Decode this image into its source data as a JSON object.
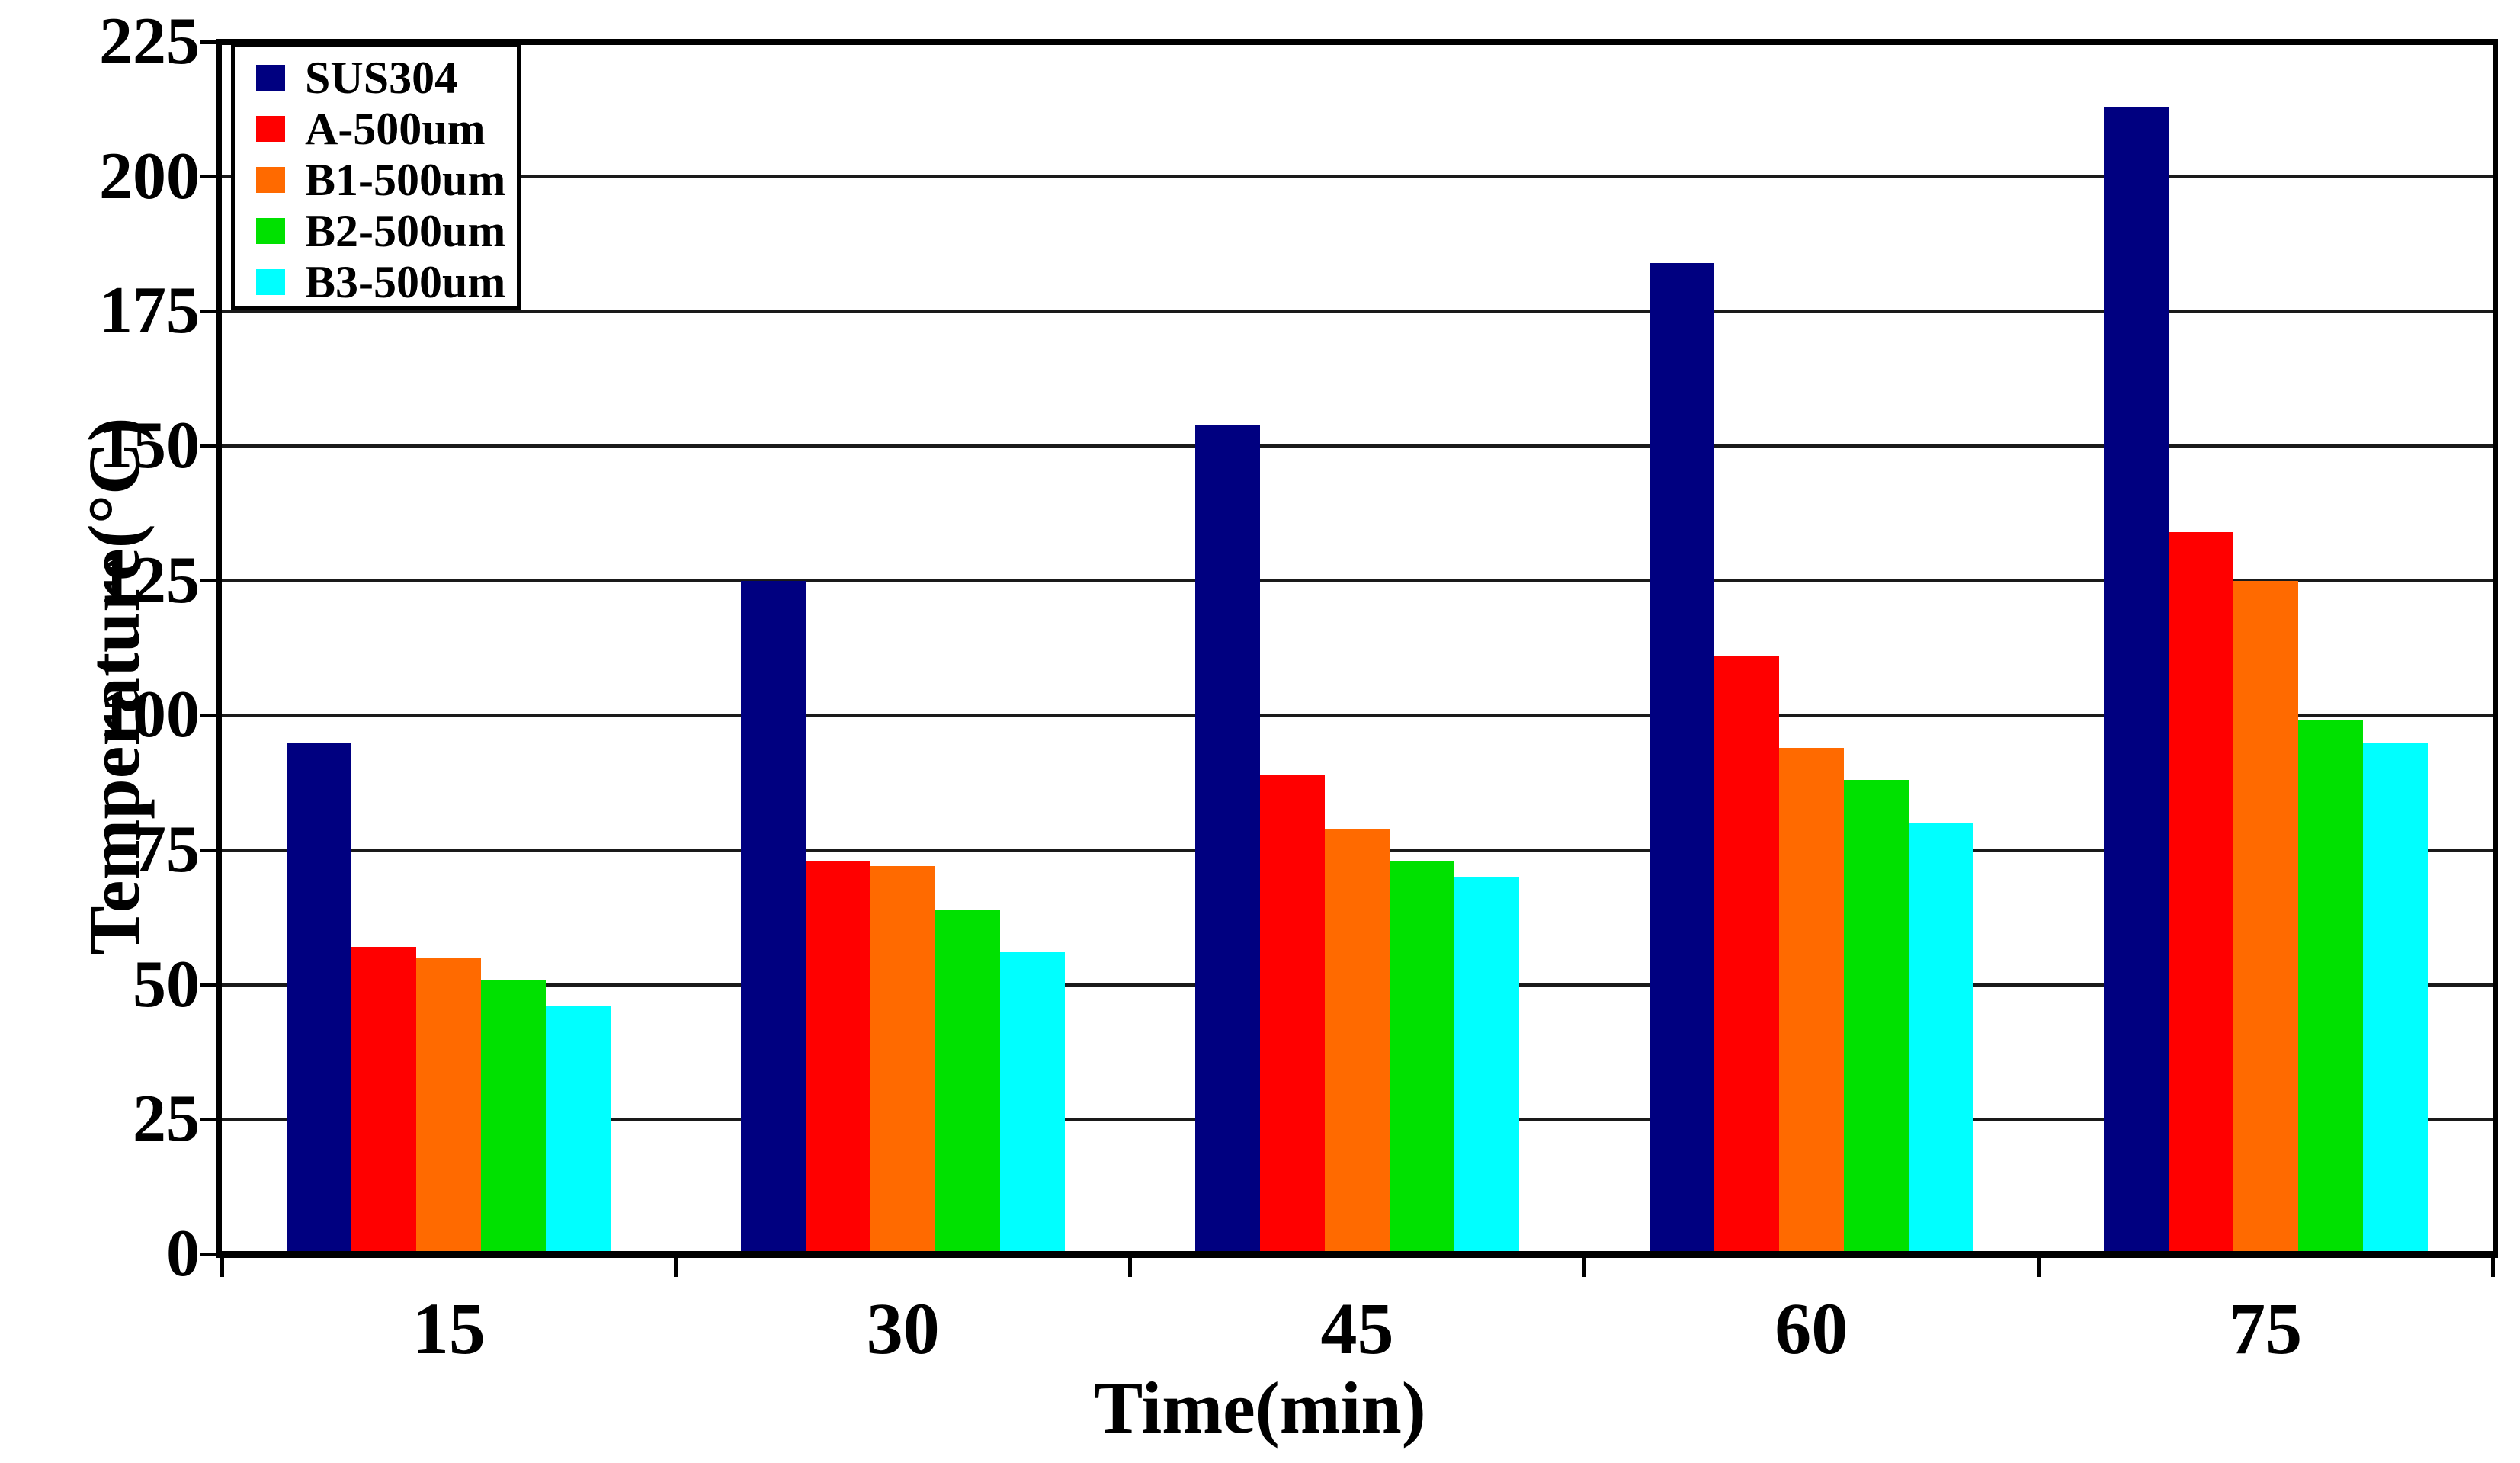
{
  "chart_data": {
    "type": "bar",
    "title": "",
    "xlabel": "Time(min)",
    "ylabel": "Temperature(°C)",
    "categories": [
      "15",
      "30",
      "45",
      "60",
      "75"
    ],
    "series": [
      {
        "name": "SUS304",
        "color": "#000080",
        "values": [
          95,
          125,
          154,
          184,
          213
        ]
      },
      {
        "name": "A-500um",
        "color": "#FF0000",
        "values": [
          57,
          73,
          89,
          111,
          134
        ]
      },
      {
        "name": "B1-500um",
        "color": "#FF6A00",
        "values": [
          55,
          72,
          79,
          94,
          125
        ]
      },
      {
        "name": "B2-500um",
        "color": "#00E100",
        "values": [
          51,
          64,
          73,
          88,
          99
        ]
      },
      {
        "name": "B3-500um",
        "color": "#00FFFF",
        "values": [
          46,
          56,
          70,
          80,
          95
        ]
      }
    ],
    "ylim": [
      0,
      225
    ],
    "yticks": [
      0,
      25,
      50,
      75,
      100,
      125,
      150,
      175,
      200,
      225
    ],
    "grid": "horizontal",
    "grid_color": "#1a1a1a",
    "axis_color": "#000000",
    "background": "#ffffff",
    "legend_position": "top-left"
  }
}
